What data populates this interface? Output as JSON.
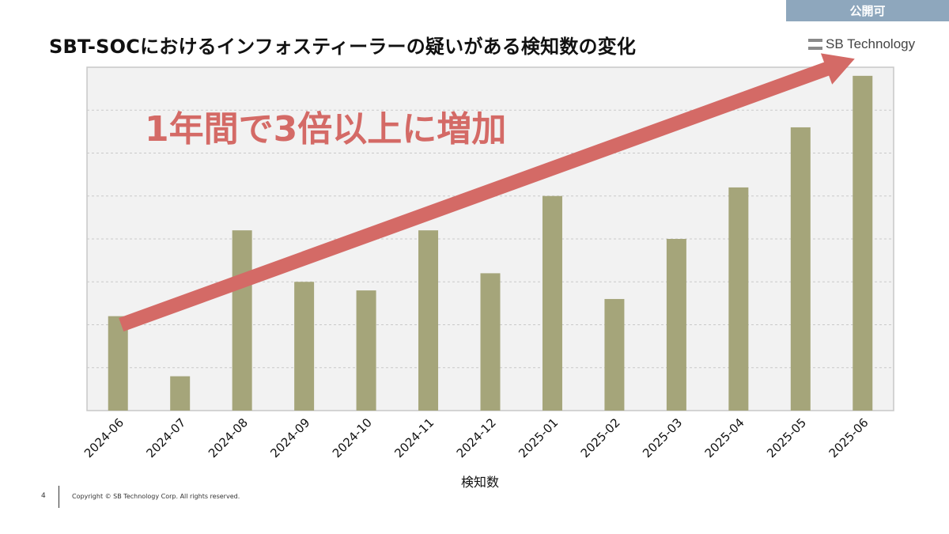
{
  "badge": "公開可",
  "title": "SBT-SOCにおけるインフォスティーラーの疑いがある検知数の変化",
  "logo_text": "SB Technology",
  "annotation": "1年間で3倍以上に増加",
  "footer": {
    "page_number": "4",
    "copyright": "Copyright © SB Technology Corp. All rights reserved."
  },
  "colors": {
    "bar": "#a5a57a",
    "arrow": "#d46a66",
    "plot_bg": "#f2f2f2"
  },
  "chart_data": {
    "type": "bar",
    "title": "",
    "xlabel": "検知数",
    "ylabel": "",
    "ylim": [
      0,
      40
    ],
    "y_tick_labels_shown": false,
    "categories": [
      "2024-06",
      "2024-07",
      "2024-08",
      "2024-09",
      "2024-10",
      "2024-11",
      "2024-12",
      "2025-01",
      "2025-02",
      "2025-03",
      "2025-04",
      "2025-05",
      "2025-06"
    ],
    "values": [
      11,
      4,
      21,
      15,
      14,
      21,
      16,
      25,
      13,
      20,
      26,
      33,
      39
    ],
    "grid": true,
    "trend_arrow": {
      "from_category": "2024-06",
      "to_category": "2025-06",
      "start_value": 10,
      "end_value": 41,
      "label": "1年間で3倍以上に増加"
    }
  }
}
